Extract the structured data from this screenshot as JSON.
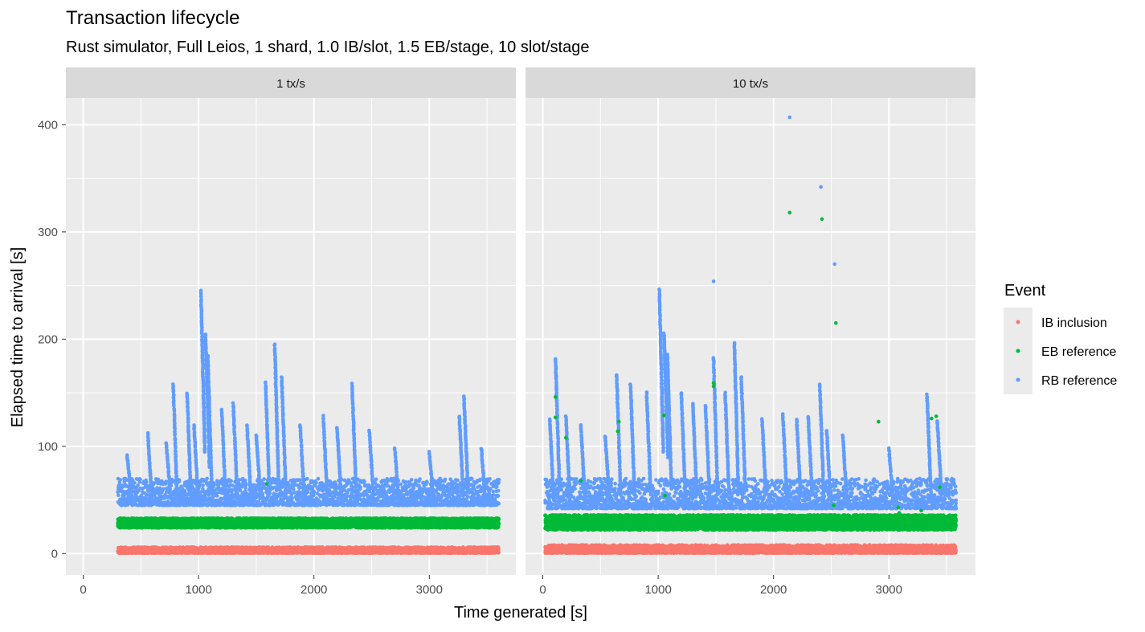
{
  "chart_data": {
    "type": "scatter",
    "title": "Transaction lifecycle",
    "subtitle": "Rust simulator, Full Leios, 1 shard, 1.0 IB/slot, 1.5 EB/stage, 10 slot/stage",
    "xlabel": "Time generated [s]",
    "ylabel": "Elapsed time to arrival [s]",
    "xlim": [
      -150,
      3750
    ],
    "ylim": [
      -20,
      425
    ],
    "x_ticks": [
      0,
      1000,
      2000,
      3000
    ],
    "y_ticks": [
      0,
      100,
      200,
      300,
      400
    ],
    "grid": true,
    "legend": {
      "title": "Event",
      "position": "right",
      "entries": [
        {
          "label": "IB inclusion",
          "color": "#F8766D"
        },
        {
          "label": "EB reference",
          "color": "#00BA38"
        },
        {
          "label": "RB reference",
          "color": "#619CFF"
        }
      ]
    },
    "panels": [
      {
        "label": "1 tx/s",
        "x_range": [
          300,
          3600
        ],
        "series": [
          {
            "name": "IB inclusion",
            "color": "#F8766D",
            "band": [
              0.5,
              6
            ],
            "typical": 2.5
          },
          {
            "name": "EB reference",
            "color": "#00BA38",
            "band": [
              22,
              35
            ],
            "typical": 27
          },
          {
            "name": "RB reference",
            "color": "#619CFF",
            "band": [
              45,
              100
            ],
            "typical": 55,
            "bursts": [
              [
                380,
                55,
                92
              ],
              [
                560,
                50,
                112
              ],
              [
                720,
                55,
                103
              ],
              [
                780,
                50,
                158
              ],
              [
                900,
                50,
                150
              ],
              [
                960,
                55,
                120
              ],
              [
                1020,
                95,
                245
              ],
              [
                1060,
                80,
                205
              ],
              [
                1080,
                60,
                185
              ],
              [
                1200,
                50,
                135
              ],
              [
                1300,
                55,
                140
              ],
              [
                1420,
                50,
                120
              ],
              [
                1500,
                55,
                110
              ],
              [
                1580,
                55,
                160
              ],
              [
                1660,
                60,
                195
              ],
              [
                1720,
                60,
                165
              ],
              [
                1880,
                55,
                120
              ],
              [
                2080,
                55,
                128
              ],
              [
                2200,
                55,
                118
              ],
              [
                2330,
                60,
                158
              ],
              [
                2480,
                55,
                115
              ],
              [
                2700,
                50,
                98
              ],
              [
                3000,
                50,
                95
              ],
              [
                3260,
                55,
                128
              ],
              [
                3300,
                60,
                147
              ],
              [
                3450,
                50,
                98
              ]
            ],
            "outliers": [
              [
                1590,
                65,
                "EB reference"
              ]
            ]
          }
        ]
      },
      {
        "label": "10 tx/s",
        "x_range": [
          20,
          3580
        ],
        "series": [
          {
            "name": "IB inclusion",
            "color": "#F8766D",
            "band": [
              0.5,
              8
            ],
            "typical": 2.5
          },
          {
            "name": "EB reference",
            "color": "#00BA38",
            "band": [
              20,
              38
            ],
            "typical": 27
          },
          {
            "name": "RB reference",
            "color": "#619CFF",
            "band": [
              42,
              100
            ],
            "typical": 55,
            "bursts": [
              [
                60,
                50,
                126
              ],
              [
                110,
                60,
                182
              ],
              [
                200,
                50,
                128
              ],
              [
                330,
                50,
                120
              ],
              [
                540,
                55,
                110
              ],
              [
                640,
                55,
                167
              ],
              [
                760,
                55,
                158
              ],
              [
                900,
                55,
                150
              ],
              [
                1010,
                95,
                246
              ],
              [
                1050,
                90,
                205
              ],
              [
                1080,
                60,
                185
              ],
              [
                1200,
                55,
                150
              ],
              [
                1300,
                55,
                140
              ],
              [
                1410,
                55,
                138
              ],
              [
                1480,
                55,
                183
              ],
              [
                1580,
                55,
                150
              ],
              [
                1660,
                60,
                196
              ],
              [
                1720,
                60,
                165
              ],
              [
                1900,
                55,
                125
              ],
              [
                2080,
                55,
                130
              ],
              [
                2200,
                55,
                125
              ],
              [
                2300,
                55,
                128
              ],
              [
                2400,
                55,
                158
              ],
              [
                2460,
                50,
                115
              ],
              [
                2600,
                50,
                110
              ],
              [
                3000,
                50,
                98
              ],
              [
                3330,
                55,
                148
              ],
              [
                3420,
                55,
                123
              ]
            ],
            "outliers": [
              [
                2140,
                407,
                "RB reference"
              ],
              [
                2410,
                342,
                "RB reference"
              ],
              [
                2530,
                270,
                "RB reference"
              ],
              [
                1480,
                254,
                "RB reference"
              ],
              [
                2140,
                318,
                "EB reference"
              ],
              [
                2420,
                312,
                "EB reference"
              ],
              [
                2540,
                215,
                "EB reference"
              ],
              [
                110,
                146,
                "EB reference"
              ],
              [
                110,
                127,
                "EB reference"
              ],
              [
                200,
                108,
                "EB reference"
              ],
              [
                650,
                114,
                "EB reference"
              ],
              [
                660,
                123,
                "EB reference"
              ],
              [
                1050,
                129,
                "EB reference"
              ],
              [
                1480,
                159,
                "EB reference"
              ],
              [
                1480,
                156,
                "EB reference"
              ],
              [
                2910,
                123,
                "EB reference"
              ],
              [
                3370,
                126,
                "EB reference"
              ],
              [
                3410,
                128,
                "EB reference"
              ],
              [
                3440,
                62,
                "EB reference"
              ],
              [
                3080,
                43,
                "EB reference"
              ],
              [
                3090,
                38,
                "EB reference"
              ],
              [
                3280,
                40,
                "EB reference"
              ],
              [
                2520,
                45,
                "EB reference"
              ],
              [
                330,
                68,
                "EB reference"
              ],
              [
                1060,
                54,
                "EB reference"
              ]
            ]
          }
        ]
      }
    ]
  }
}
